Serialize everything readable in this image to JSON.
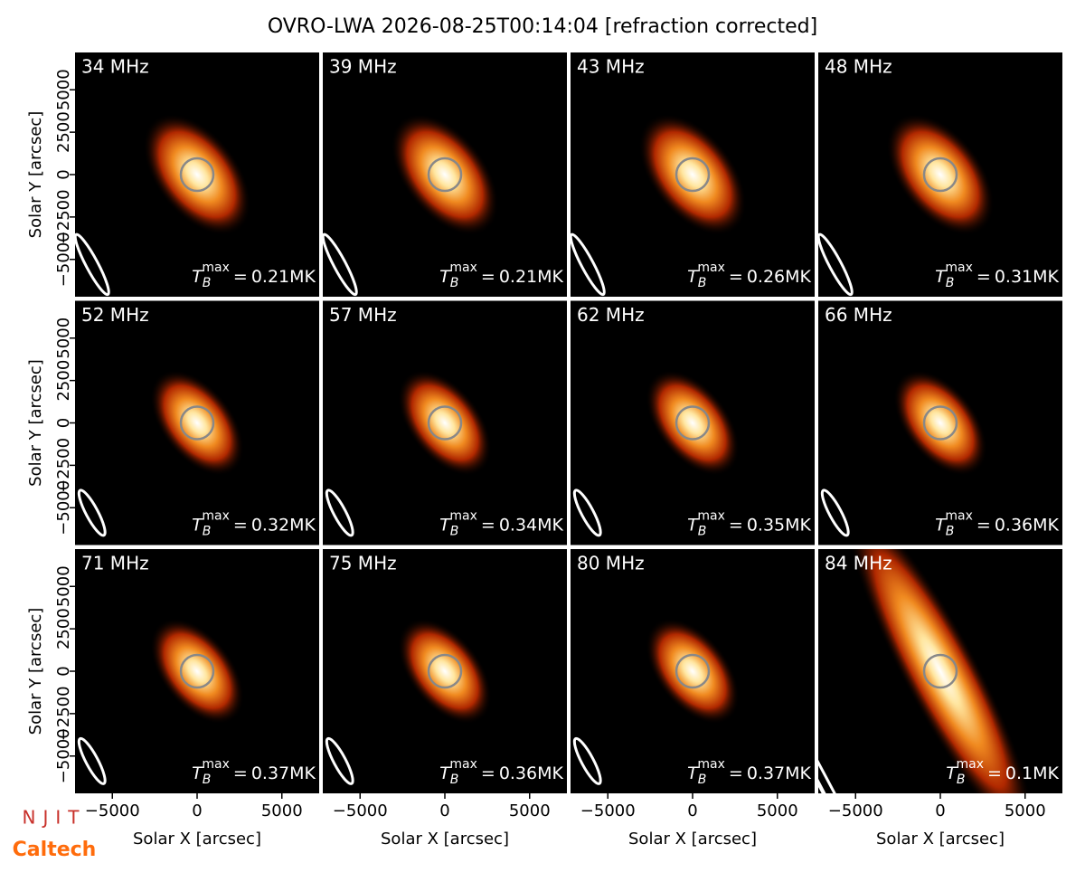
{
  "title": "OVRO-LWA 2026-08-25T00:14:04 [refraction corrected]",
  "tb_symbol": {
    "base": "T",
    "sub": "B",
    "sup": "max",
    "relation": "="
  },
  "logos": [
    "NJIT",
    "Caltech"
  ],
  "chart_data": [
    {
      "type": "image",
      "title": "34 MHz",
      "tb_label": "0.21MK",
      "xlim": [
        -7200,
        7200
      ],
      "ylim": [
        -7200,
        7200
      ],
      "ylabel": "Solar Y [arcsec]",
      "yticks": [
        {
          "value": -5000,
          "label": "−5000"
        },
        {
          "value": -2500,
          "label": "−2500"
        },
        0,
        2500,
        5000
      ]
    },
    {
      "type": "image",
      "title": "39 MHz",
      "tb_label": "0.21MK",
      "xlim": [
        -7200,
        7200
      ],
      "ylim": [
        -7200,
        7200
      ]
    },
    {
      "type": "image",
      "title": "43 MHz",
      "tb_label": "0.26MK",
      "xlim": [
        -7200,
        7200
      ],
      "ylim": [
        -7200,
        7200
      ]
    },
    {
      "type": "image",
      "title": "48 MHz",
      "tb_label": "0.31MK",
      "xlim": [
        -7200,
        7200
      ],
      "ylim": [
        -7200,
        7200
      ]
    },
    {
      "type": "image",
      "title": "52 MHz",
      "tb_label": "0.32MK",
      "xlim": [
        -7200,
        7200
      ],
      "ylim": [
        -7200,
        7200
      ],
      "ylabel": "Solar Y [arcsec]",
      "yticks": [
        {
          "value": -5000,
          "label": "−5000"
        },
        {
          "value": -2500,
          "label": "−2500"
        },
        0,
        2500,
        5000
      ]
    },
    {
      "type": "image",
      "title": "57 MHz",
      "tb_label": "0.34MK",
      "xlim": [
        -7200,
        7200
      ],
      "ylim": [
        -7200,
        7200
      ]
    },
    {
      "type": "image",
      "title": "62 MHz",
      "tb_label": "0.35MK",
      "xlim": [
        -7200,
        7200
      ],
      "ylim": [
        -7200,
        7200
      ]
    },
    {
      "type": "image",
      "title": "66 MHz",
      "tb_label": "0.36MK",
      "xlim": [
        -7200,
        7200
      ],
      "ylim": [
        -7200,
        7200
      ]
    },
    {
      "type": "image",
      "title": "71 MHz",
      "tb_label": "0.37MK",
      "xlim": [
        -7200,
        7200
      ],
      "ylim": [
        -7200,
        7200
      ],
      "ylabel": "Solar Y [arcsec]",
      "yticks": [
        {
          "value": -5000,
          "label": "−5000"
        },
        {
          "value": -2500,
          "label": "−2500"
        },
        0,
        2500,
        5000
      ],
      "xlabel": "Solar X [arcsec]",
      "xticks": [
        {
          "value": -5000,
          "label": "−5000"
        },
        0,
        5000
      ]
    },
    {
      "type": "image",
      "title": "75 MHz",
      "tb_label": "0.36MK",
      "xlim": [
        -7200,
        7200
      ],
      "ylim": [
        -7200,
        7200
      ],
      "xlabel": "Solar X [arcsec]",
      "xticks": [
        {
          "value": -5000,
          "label": "−5000"
        },
        0,
        5000
      ]
    },
    {
      "type": "image",
      "title": "80 MHz",
      "tb_label": "0.37MK",
      "xlim": [
        -7200,
        7200
      ],
      "ylim": [
        -7200,
        7200
      ],
      "xlabel": "Solar X [arcsec]",
      "xticks": [
        {
          "value": -5000,
          "label": "−5000"
        },
        0,
        5000
      ]
    },
    {
      "type": "image",
      "title": "84 MHz",
      "tb_label": "0.1MK",
      "xlim": [
        -7200,
        7200
      ],
      "ylim": [
        -7200,
        7200
      ],
      "xlabel": "Solar X [arcsec]",
      "xticks": [
        {
          "value": -5000,
          "label": "−5000"
        },
        0,
        5000
      ]
    }
  ]
}
